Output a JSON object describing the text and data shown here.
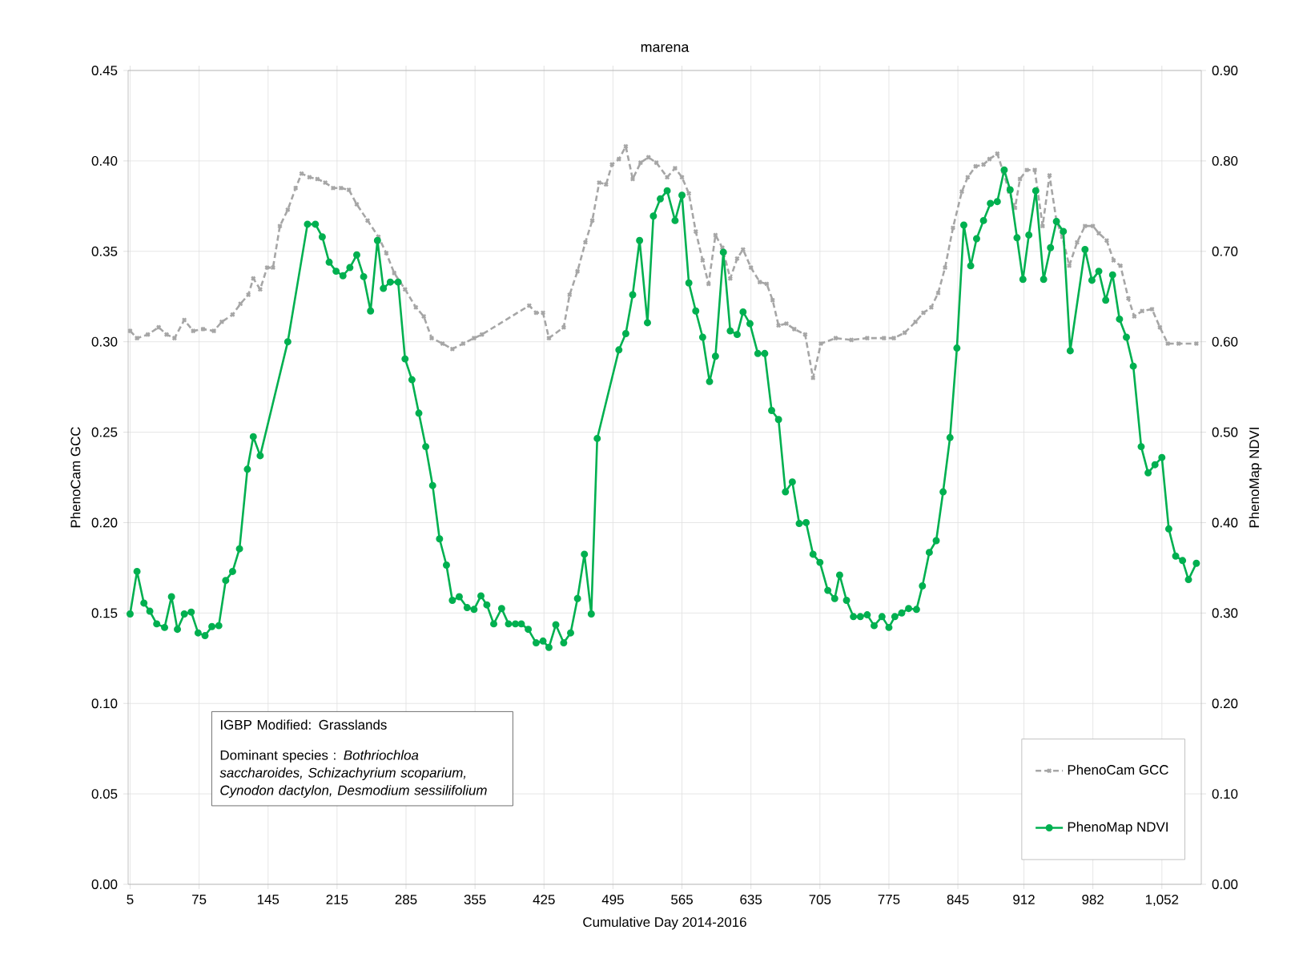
{
  "chart_data": {
    "type": "line",
    "title": "marena",
    "xlabel": "Cumulative Day 2014-2016",
    "ylabel": "PhenoCam GCC",
    "y2label": "PhenoMap NDVI",
    "xlim": [
      3,
      1092
    ],
    "xticks": [
      5,
      75,
      145,
      215,
      285,
      355,
      425,
      495,
      565,
      635,
      705,
      775,
      845,
      912,
      982,
      {
        "value": 1052,
        "label": "1,052"
      }
    ],
    "ylim": [
      0,
      0.45
    ],
    "yticks": [
      {
        "value": 0,
        "label": "0.00"
      },
      {
        "value": 0.05,
        "label": "0.05"
      },
      {
        "value": 0.1,
        "label": "0.10"
      },
      {
        "value": 0.15,
        "label": "0.15"
      },
      {
        "value": 0.2,
        "label": "0.20"
      },
      {
        "value": 0.25,
        "label": "0.25"
      },
      {
        "value": 0.3,
        "label": "0.30"
      },
      {
        "value": 0.35,
        "label": "0.35"
      },
      {
        "value": 0.4,
        "label": "0.40"
      },
      {
        "value": 0.45,
        "label": "0.45"
      }
    ],
    "y2lim": [
      0,
      0.9
    ],
    "y2ticks": [
      {
        "value": 0,
        "label": "0.00"
      },
      {
        "value": 0.1,
        "label": "0.10"
      },
      {
        "value": 0.2,
        "label": "0.20"
      },
      {
        "value": 0.3,
        "label": "0.30"
      },
      {
        "value": 0.4,
        "label": "0.40"
      },
      {
        "value": 0.5,
        "label": "0.50"
      },
      {
        "value": 0.6,
        "label": "0.60"
      },
      {
        "value": 0.7,
        "label": "0.70"
      },
      {
        "value": 0.8,
        "label": "0.80"
      },
      {
        "value": 0.9,
        "label": "0.90"
      }
    ],
    "grid": true,
    "legend": "bottom right",
    "annotations": [
      "IGBP Modified:  Grasslands",
      "Dominant species : *Bothriochloa saccharoides, Schizachyrium scoparium, Cynodon dactylon, Desmodium sessilifolium*"
    ],
    "series": [
      {
        "name": "PhenoCam GCC",
        "color": "#a6a6a6",
        "line_style": "dashed",
        "marker": "cross",
        "x": [
          5,
          12,
          23,
          34,
          42,
          50,
          60,
          69,
          79,
          90,
          98,
          109,
          117,
          125,
          130,
          137,
          144,
          150,
          157,
          165,
          173,
          179,
          187,
          195,
          203,
          211,
          219,
          227,
          235,
          246,
          257,
          265,
          273,
          284,
          295,
          303,
          311,
          322,
          332,
          343,
          354,
          362,
          410,
          417,
          424,
          430,
          445,
          451,
          459,
          467,
          474,
          481,
          488,
          494,
          501,
          508,
          515,
          523,
          531,
          539,
          550,
          558,
          565,
          572,
          579,
          586,
          592,
          599,
          606,
          614,
          621,
          627,
          635,
          644,
          651,
          657,
          663,
          671,
          679,
          690,
          698,
          706,
          721,
          737,
          753,
          770,
          780,
          791,
          802,
          810,
          818,
          825,
          832,
          840,
          849,
          855,
          863,
          871,
          877,
          885,
          891,
          897,
          903,
          908,
          915,
          923,
          931,
          938,
          945,
          951,
          958,
          966,
          974,
          982,
          988,
          996,
          1003,
          1010,
          1018,
          1024,
          1032,
          1042,
          1050,
          1058,
          1069,
          1087
        ],
        "values": [
          0.306,
          0.302,
          0.304,
          0.308,
          0.304,
          0.302,
          0.312,
          0.306,
          0.307,
          0.306,
          0.311,
          0.315,
          0.321,
          0.326,
          0.335,
          0.329,
          0.341,
          0.341,
          0.364,
          0.373,
          0.385,
          0.393,
          0.391,
          0.39,
          0.388,
          0.385,
          0.385,
          0.384,
          0.376,
          0.367,
          0.358,
          0.349,
          0.338,
          0.329,
          0.319,
          0.314,
          0.302,
          0.299,
          0.296,
          0.299,
          0.302,
          0.304,
          0.32,
          0.316,
          0.316,
          0.302,
          0.308,
          0.326,
          0.339,
          0.355,
          0.367,
          0.388,
          0.387,
          0.398,
          0.401,
          0.408,
          0.39,
          0.399,
          0.402,
          0.399,
          0.391,
          0.396,
          0.391,
          0.382,
          0.361,
          0.345,
          0.332,
          0.359,
          0.352,
          0.335,
          0.346,
          0.351,
          0.341,
          0.333,
          0.332,
          0.323,
          0.309,
          0.31,
          0.307,
          0.304,
          0.28,
          0.299,
          0.302,
          0.301,
          0.302,
          0.302,
          0.302,
          0.305,
          0.311,
          0.316,
          0.319,
          0.327,
          0.341,
          0.363,
          0.383,
          0.391,
          0.397,
          0.398,
          0.401,
          0.404,
          0.394,
          0.383,
          0.374,
          0.39,
          0.395,
          0.395,
          0.364,
          0.392,
          0.367,
          0.358,
          0.342,
          0.355,
          0.364,
          0.364,
          0.36,
          0.356,
          0.345,
          0.342,
          0.324,
          0.314,
          0.317,
          0.318,
          0.308,
          0.299,
          0.299,
          0.299
        ]
      },
      {
        "name": "PhenoMap NDVI",
        "color": "#00b050",
        "line_style": "solid",
        "marker": "circle",
        "axis": "y2",
        "x": [
          5,
          12,
          19,
          25,
          32,
          40,
          47,
          53,
          60,
          67,
          74,
          81,
          88,
          95,
          102,
          109,
          116,
          124,
          130,
          137,
          165,
          185,
          193,
          200,
          207,
          214,
          221,
          228,
          235,
          242,
          249,
          256,
          262,
          269,
          277,
          284,
          291,
          298,
          305,
          312,
          319,
          326,
          332,
          339,
          347,
          354,
          361,
          367,
          374,
          382,
          389,
          396,
          402,
          409,
          417,
          424,
          430,
          437,
          445,
          452,
          459,
          466,
          473,
          479,
          501,
          508,
          515,
          522,
          530,
          536,
          543,
          550,
          558,
          565,
          572,
          579,
          586,
          593,
          599,
          607,
          614,
          621,
          627,
          634,
          642,
          649,
          656,
          663,
          670,
          677,
          684,
          691,
          698,
          705,
          713,
          720,
          725,
          732,
          739,
          746,
          753,
          760,
          768,
          775,
          781,
          788,
          795,
          803,
          809,
          816,
          823,
          830,
          837,
          844,
          851,
          858,
          864,
          871,
          878,
          885,
          892,
          898,
          905,
          911,
          917,
          924,
          932,
          939,
          945,
          952,
          959,
          974,
          981,
          988,
          995,
          1002,
          1009,
          1016,
          1023,
          1031,
          1038,
          1045,
          1052,
          1059,
          1066,
          1073,
          1079,
          1087
        ],
        "values": [
          0.299,
          0.346,
          0.311,
          0.302,
          0.288,
          0.284,
          0.318,
          0.282,
          0.299,
          0.301,
          0.278,
          0.275,
          0.285,
          0.286,
          0.336,
          0.346,
          0.371,
          0.459,
          0.495,
          0.474,
          0.6,
          0.73,
          0.73,
          0.716,
          0.688,
          0.678,
          0.673,
          0.682,
          0.696,
          0.672,
          0.634,
          0.712,
          0.659,
          0.666,
          0.666,
          0.581,
          0.558,
          0.521,
          0.484,
          0.441,
          0.382,
          0.353,
          0.314,
          0.318,
          0.306,
          0.304,
          0.319,
          0.309,
          0.288,
          0.305,
          0.288,
          0.288,
          0.288,
          0.282,
          0.267,
          0.269,
          0.262,
          0.287,
          0.267,
          0.278,
          0.316,
          0.365,
          0.299,
          0.493,
          0.591,
          0.609,
          0.652,
          0.712,
          0.621,
          0.739,
          0.758,
          0.767,
          0.734,
          0.762,
          0.665,
          0.634,
          0.605,
          0.556,
          0.584,
          0.699,
          0.612,
          0.608,
          0.633,
          0.62,
          0.587,
          0.587,
          0.524,
          0.514,
          0.434,
          0.445,
          0.399,
          0.4,
          0.365,
          0.356,
          0.325,
          0.316,
          0.342,
          0.314,
          0.296,
          0.296,
          0.298,
          0.286,
          0.296,
          0.284,
          0.296,
          0.3,
          0.305,
          0.304,
          0.33,
          0.367,
          0.38,
          0.434,
          0.494,
          0.593,
          0.729,
          0.684,
          0.714,
          0.734,
          0.753,
          0.755,
          0.79,
          0.768,
          0.715,
          0.669,
          0.718,
          0.767,
          0.669,
          0.704,
          0.733,
          0.722,
          0.59,
          0.702,
          0.668,
          0.678,
          0.646,
          0.674,
          0.625,
          0.605,
          0.573,
          0.484,
          0.455,
          0.464,
          0.472,
          0.393,
          0.363,
          0.358,
          0.337,
          0.355
        ]
      }
    ]
  }
}
